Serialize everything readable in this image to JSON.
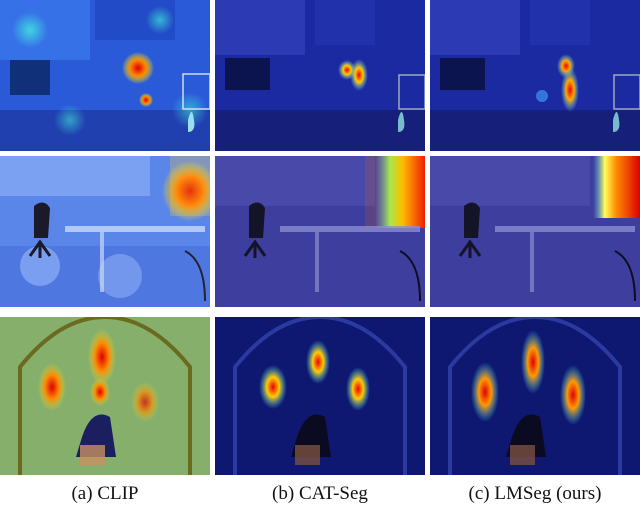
{
  "figure": {
    "captions": [
      "(a) CLIP",
      "(b) CAT-Seg",
      "(c) LMSeg (ours)"
    ]
  }
}
